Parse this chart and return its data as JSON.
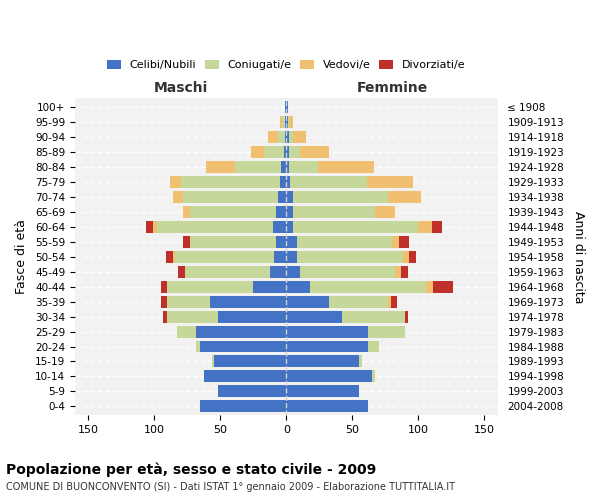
{
  "age_groups": [
    "0-4",
    "5-9",
    "10-14",
    "15-19",
    "20-24",
    "25-29",
    "30-34",
    "35-39",
    "40-44",
    "45-49",
    "50-54",
    "55-59",
    "60-64",
    "65-69",
    "70-74",
    "75-79",
    "80-84",
    "85-89",
    "90-94",
    "95-99",
    "100+"
  ],
  "birth_years": [
    "2004-2008",
    "1999-2003",
    "1994-1998",
    "1989-1993",
    "1984-1988",
    "1979-1983",
    "1974-1978",
    "1969-1973",
    "1964-1968",
    "1959-1963",
    "1954-1958",
    "1949-1953",
    "1944-1948",
    "1939-1943",
    "1934-1938",
    "1929-1933",
    "1924-1928",
    "1919-1923",
    "1914-1918",
    "1909-1913",
    "≤ 1908"
  ],
  "male": {
    "celibi": [
      65,
      52,
      62,
      55,
      65,
      68,
      52,
      58,
      25,
      12,
      9,
      8,
      10,
      8,
      6,
      5,
      4,
      2,
      1,
      1,
      1
    ],
    "coniugati": [
      0,
      0,
      0,
      1,
      3,
      15,
      38,
      32,
      65,
      65,
      75,
      65,
      88,
      65,
      72,
      75,
      35,
      15,
      5,
      2,
      0
    ],
    "vedovi": [
      0,
      0,
      0,
      0,
      0,
      0,
      0,
      0,
      0,
      0,
      2,
      0,
      3,
      5,
      8,
      8,
      22,
      10,
      8,
      2,
      0
    ],
    "divorziati": [
      0,
      0,
      0,
      0,
      0,
      0,
      3,
      5,
      5,
      5,
      5,
      5,
      5,
      0,
      0,
      0,
      0,
      0,
      0,
      0,
      0
    ]
  },
  "female": {
    "nubili": [
      62,
      55,
      65,
      55,
      62,
      62,
      42,
      32,
      18,
      10,
      8,
      8,
      5,
      5,
      5,
      3,
      2,
      2,
      2,
      1,
      1
    ],
    "coniugate": [
      0,
      0,
      2,
      2,
      8,
      28,
      48,
      45,
      88,
      72,
      80,
      72,
      95,
      62,
      72,
      58,
      22,
      8,
      3,
      1,
      0
    ],
    "vedove": [
      0,
      0,
      0,
      0,
      0,
      0,
      0,
      2,
      5,
      5,
      5,
      5,
      10,
      15,
      25,
      35,
      42,
      22,
      10,
      3,
      0
    ],
    "divorziate": [
      0,
      0,
      0,
      0,
      0,
      0,
      2,
      5,
      15,
      5,
      5,
      8,
      8,
      0,
      0,
      0,
      0,
      0,
      0,
      0,
      0
    ]
  },
  "color_celibi": "#4472c4",
  "color_coniugati": "#c5d89a",
  "color_vedovi": "#f0c070",
  "color_divorziati": "#c0302a",
  "color_bg": "#f2f2f2",
  "xlim": 160,
  "title": "Popolazione per età, sesso e stato civile - 2009",
  "subtitle": "COMUNE DI BUONCONVENTO (SI) - Dati ISTAT 1° gennaio 2009 - Elaborazione TUTTITALIA.IT",
  "ylabel_left": "Fasce di età",
  "ylabel_right": "Anni di nascita",
  "header_male": "Maschi",
  "header_female": "Femmine"
}
